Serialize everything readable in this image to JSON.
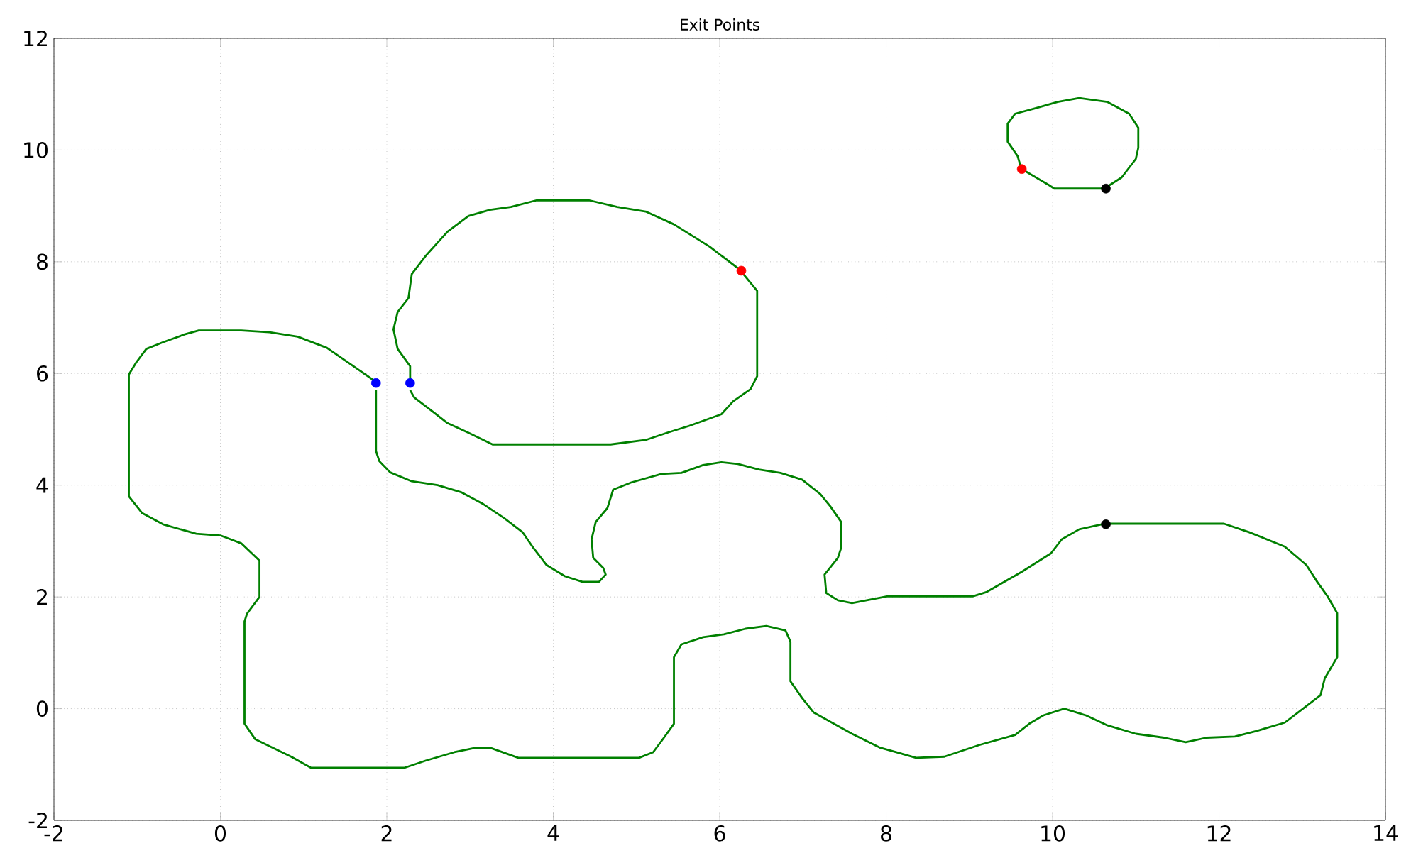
{
  "chart_data": {
    "type": "line",
    "title": "Exit Points",
    "xlim": [
      -2,
      14
    ],
    "ylim": [
      -2,
      12
    ],
    "xticks": [
      -2,
      0,
      2,
      4,
      6,
      8,
      10,
      12,
      14
    ],
    "yticks": [
      -2,
      0,
      2,
      4,
      6,
      8,
      10,
      12
    ],
    "grid": true,
    "line_style": "solid",
    "series": [
      {
        "color": "#008000",
        "x": [
          1.87,
          1.28,
          0.93,
          0.59,
          0.25,
          -0.26,
          -0.43,
          -0.69,
          -0.89,
          -1.01,
          -1.1,
          -1.1,
          -0.94,
          -0.69,
          -0.29,
          0,
          0.25,
          0.47,
          0.47,
          0.32,
          0.29,
          0.29,
          0.42,
          0.85,
          1.09,
          2.21,
          2.47,
          2.81,
          3.07,
          3.24,
          3.58,
          4.52,
          5.03,
          5.2,
          5.33,
          5.45,
          5.45,
          5.54,
          5.8,
          6.05,
          6.31,
          6.56,
          6.79,
          6.85,
          6.85,
          6.99,
          7.13,
          7.59,
          7.93,
          8.36,
          8.7,
          9.12,
          9.55,
          9.72,
          9.89,
          10.14,
          10.4,
          10.66,
          11.0,
          11.34,
          11.6,
          11.85,
          12.19,
          12.45,
          12.79,
          13.22,
          13.27,
          13.42,
          13.42,
          13.3,
          13.18,
          13.05,
          12.79,
          12.36,
          12.06,
          11.17,
          10.62,
          10.32,
          10.11,
          9.98,
          9.63,
          9.21,
          9.04,
          8.01,
          7.59,
          7.42,
          7.28,
          7.26,
          7.42,
          7.46,
          7.46,
          7.33,
          7.21,
          6.99,
          6.73,
          6.47,
          6.22,
          6.02,
          5.8,
          5.54,
          5.3,
          4.94,
          4.72,
          4.65,
          4.51,
          4.46,
          4.48,
          4.6,
          4.63,
          4.55,
          4.35,
          4.14,
          3.92,
          3.75,
          3.63,
          3.41,
          3.15,
          2.9,
          2.61,
          2.3,
          2.04,
          1.91,
          1.87,
          1.87
        ],
        "values": [
          5.85,
          6.46,
          6.66,
          6.74,
          6.77,
          6.77,
          6.7,
          6.56,
          6.44,
          6.2,
          5.98,
          3.8,
          3.5,
          3.3,
          3.13,
          3.1,
          2.96,
          2.65,
          2.0,
          1.7,
          1.56,
          -0.27,
          -0.55,
          -0.86,
          -1.06,
          -1.06,
          -0.93,
          -0.78,
          -0.7,
          -0.7,
          -0.88,
          -0.88,
          -0.88,
          -0.78,
          -0.52,
          -0.27,
          0.92,
          1.15,
          1.28,
          1.33,
          1.43,
          1.48,
          1.4,
          1.2,
          0.49,
          0.19,
          -0.07,
          -0.45,
          -0.7,
          -0.88,
          -0.86,
          -0.65,
          -0.47,
          -0.27,
          -0.12,
          0,
          -0.12,
          -0.3,
          -0.45,
          -0.52,
          -0.6,
          -0.52,
          -0.5,
          -0.4,
          -0.25,
          0.24,
          0.54,
          0.92,
          1.71,
          2.02,
          2.27,
          2.57,
          2.9,
          3.16,
          3.31,
          3.31,
          3.31,
          3.21,
          3.03,
          2.78,
          2.45,
          2.09,
          2.01,
          2.01,
          1.89,
          1.94,
          2.07,
          2.4,
          2.7,
          2.88,
          3.34,
          3.62,
          3.84,
          4.1,
          4.22,
          4.28,
          4.38,
          4.41,
          4.36,
          4.22,
          4.2,
          4.05,
          3.92,
          3.59,
          3.34,
          3.03,
          2.7,
          2.52,
          2.4,
          2.27,
          2.27,
          2.37,
          2.57,
          2.9,
          3.16,
          3.41,
          3.67,
          3.87,
          4.0,
          4.07,
          4.23,
          4.43,
          4.61,
          5.7
        ]
      },
      {
        "color": "#008000",
        "x": [
          2.28,
          2.28,
          2.13,
          2.08,
          2.13,
          2.26,
          2.3,
          2.47,
          2.73,
          2.98,
          3.24,
          3.49,
          3.8,
          4.43,
          4.77,
          5.11,
          5.45,
          5.88,
          6.24,
          6.45,
          6.45,
          6.37,
          6.16,
          6.02,
          5.63,
          5.37,
          5.11,
          4.69,
          3.27,
          2.98,
          2.73,
          2.55,
          2.33,
          2.28
        ],
        "values": [
          5.85,
          6.13,
          6.44,
          6.79,
          7.1,
          7.35,
          7.78,
          8.11,
          8.54,
          8.82,
          8.93,
          8.98,
          9.1,
          9.1,
          8.98,
          8.9,
          8.67,
          8.27,
          7.86,
          7.48,
          5.95,
          5.72,
          5.5,
          5.27,
          5.06,
          4.94,
          4.81,
          4.73,
          4.73,
          4.94,
          5.11,
          5.32,
          5.57,
          5.7
        ]
      },
      {
        "color": "#008000",
        "x": [
          9.63,
          9.97,
          10.02,
          10.62,
          10.83,
          11.0,
          11.03,
          11.03,
          10.92,
          10.66,
          10.32,
          10.06,
          9.8,
          9.55,
          9.46,
          9.46,
          9.58,
          9.62
        ],
        "values": [
          9.66,
          9.36,
          9.31,
          9.31,
          9.51,
          9.84,
          10.04,
          10.4,
          10.65,
          10.86,
          10.93,
          10.86,
          10.75,
          10.65,
          10.47,
          10.15,
          9.89,
          9.69
        ]
      },
      {
        "type": "scatter",
        "marker": "circle",
        "color": "#0000ff",
        "x": [
          1.87,
          2.28
        ],
        "values": [
          5.83,
          5.83
        ]
      },
      {
        "type": "scatter",
        "marker": "circle",
        "color": "#ff0000",
        "x": [
          6.26,
          9.63
        ],
        "values": [
          7.84,
          9.66
        ]
      },
      {
        "type": "scatter",
        "marker": "circle",
        "color": "#000000",
        "x": [
          10.64,
          10.64
        ],
        "values": [
          3.3,
          9.31
        ]
      }
    ]
  }
}
